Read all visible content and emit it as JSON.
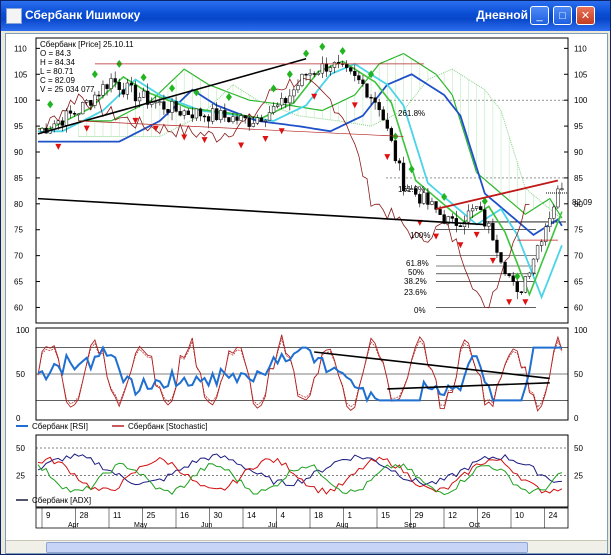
{
  "window": {
    "title": "Сбербанк Ишимоку",
    "timeframe": "Дневной"
  },
  "buttons": {
    "minimize": "_",
    "maximize": "□",
    "close": "✕"
  },
  "main_panel": {
    "info_lines": [
      "Сбербанк [Price] 25.10.11",
      "O = 84.3",
      "H = 84.34",
      "L = 80.71",
      "C = 82.09",
      "V = 25 034 077"
    ],
    "right_ticks": [
      "110",
      "105",
      "100",
      "95",
      "90",
      "85",
      "80",
      "75",
      "70",
      "65",
      "60"
    ],
    "last_price": "82.09",
    "fib_labels": [
      "261.8%",
      "161.8%",
      "100%",
      "61.8%",
      "50%",
      "38.2%",
      "23.6%",
      "0%"
    ]
  },
  "rsi_panel": {
    "ticks": [
      "100",
      "50",
      "0"
    ],
    "legend": [
      {
        "label": "Сбербанк [RSI]",
        "color": "#1f6fd0"
      },
      {
        "label": "Сбербанк [Stochastic]",
        "color": "#b22222"
      }
    ]
  },
  "adx_panel": {
    "ticks": [
      "50",
      "25"
    ],
    "legend": [
      {
        "label": "Сбербанк [ADX]",
        "color": "#1a1a3a"
      }
    ]
  },
  "date_axis": {
    "days": [
      "9",
      "28",
      "11",
      "25",
      "16",
      "30",
      "14",
      "4",
      "18",
      "1",
      "15",
      "29",
      "12",
      "26",
      "10",
      "24"
    ],
    "months": [
      "Apr",
      "May",
      "Jun",
      "Jul",
      "Aug",
      "Sep",
      "Oct"
    ]
  },
  "colors": {
    "up": "#22b522",
    "down": "#e01010",
    "cloud": "#2bb52b",
    "kijun": "#1e50c8",
    "tenkan": "#4ad4e8",
    "fib": "#c01818"
  }
}
